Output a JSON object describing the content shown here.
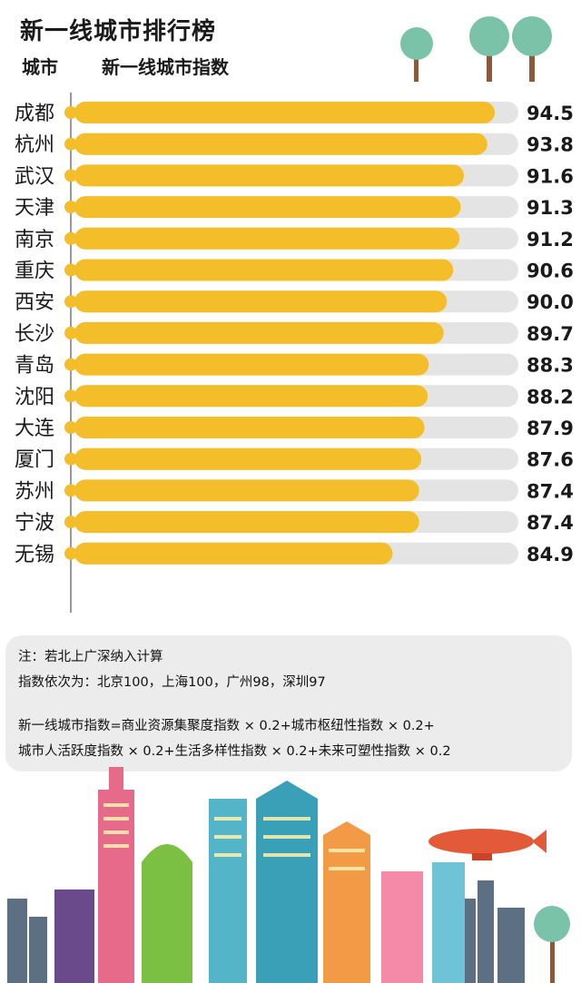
{
  "title": "新一线城市排行榜",
  "header": {
    "city_label": "城市",
    "index_label": "新一线城市指数"
  },
  "colors": {
    "bar": "#F3BE2A",
    "track": "#E4E4E4",
    "dot": "#F3BE2A",
    "axis": "#9A9A9A",
    "text": "#1a1a1a"
  },
  "chart_data": {
    "type": "bar",
    "orientation": "horizontal",
    "categories": [
      "成都",
      "杭州",
      "武汉",
      "天津",
      "南京",
      "重庆",
      "西安",
      "长沙",
      "青岛",
      "沈阳",
      "大连",
      "厦门",
      "苏州",
      "宁波",
      "无锡"
    ],
    "values": [
      94.5,
      93.8,
      91.6,
      91.3,
      91.2,
      90.6,
      90.0,
      89.7,
      88.3,
      88.2,
      87.9,
      87.6,
      87.4,
      87.4,
      84.9
    ],
    "labels": [
      "94.5",
      "93.8",
      "91.6",
      "91.3",
      "91.2",
      "90.6",
      "90.0",
      "89.7",
      "88.3",
      "88.2",
      "87.9",
      "87.6",
      "87.4",
      "87.4",
      "84.9"
    ],
    "xlim": [
      55,
      100
    ],
    "xlabel": "新一线城市指数",
    "ylabel": "城市",
    "grid": false,
    "legend": "none"
  },
  "notes": {
    "line1": "注：若北上广深纳入计算",
    "line2": "指数依次为：北京100，上海100，广州98，深圳97",
    "line3": "新一线城市指数=商业资源集聚度指数 × 0.2+城市枢纽性指数 × 0.2+",
    "line4": "城市人活跃度指数 × 0.2+生活多样性指数 × 0.2+未来可塑性指数 × 0.2"
  }
}
